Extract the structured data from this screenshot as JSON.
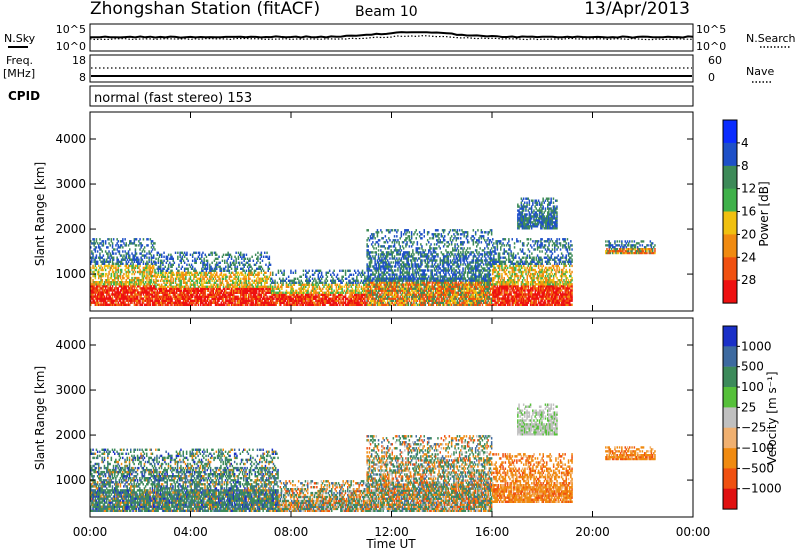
{
  "header": {
    "station": "Zhongshan Station (fitACF)",
    "beam": "Beam 10",
    "date": "13/Apr/2013"
  },
  "noise_panel": {
    "left_label": "N.Sky",
    "right_label": "N.Search",
    "left_ticks": [
      "10^5",
      "10^0"
    ],
    "right_ticks": [
      "10^5",
      "10^0"
    ]
  },
  "freq_panel": {
    "left_label": "Freq.",
    "left_unit": "[MHz]",
    "right_label": "Nave",
    "left_ticks": [
      "18",
      "8"
    ],
    "right_ticks": [
      "60",
      "0"
    ]
  },
  "cpid": {
    "label": "CPID",
    "mode": "normal (fast stereo) 153"
  },
  "x_axis": {
    "label": "Time UT",
    "ticks": [
      "00:00",
      "04:00",
      "08:00",
      "12:00",
      "16:00",
      "20:00",
      "00:00"
    ]
  },
  "chart_data": [
    {
      "type": "heatmap",
      "name": "power-panel",
      "ylabel": "Slant Range [km]",
      "yticks": [
        1000,
        2000,
        3000,
        4000
      ],
      "ylim": [
        180,
        4600
      ],
      "xlim_hours": [
        0,
        24
      ],
      "colorbar": {
        "label": "Power [dB]",
        "ticks": [
          "4",
          "8",
          "12",
          "16",
          "20",
          "24",
          "28"
        ],
        "colors": [
          "#0a2cff",
          "#1e50c8",
          "#3d8a58",
          "#3fb14a",
          "#f0c010",
          "#f08a10",
          "#f05010",
          "#ee1010"
        ]
      },
      "scatter_regions": [
        {
          "t0": 0.0,
          "t1": 2.6,
          "r0": 300,
          "r1": 1800,
          "level": "high"
        },
        {
          "t0": 2.6,
          "t1": 7.2,
          "r0": 300,
          "r1": 1500,
          "level": "high"
        },
        {
          "t0": 7.2,
          "t1": 11.0,
          "r0": 300,
          "r1": 1100,
          "level": "high"
        },
        {
          "t0": 11.0,
          "t1": 16.0,
          "r0": 300,
          "r1": 2000,
          "level": "medium"
        },
        {
          "t0": 16.0,
          "t1": 19.2,
          "r0": 300,
          "r1": 1800,
          "level": "high"
        },
        {
          "t0": 17.0,
          "t1": 18.6,
          "r0": 2000,
          "r1": 2700,
          "level": "low"
        },
        {
          "t0": 20.5,
          "t1": 22.5,
          "r0": 1450,
          "r1": 1750,
          "level": "medium"
        }
      ]
    },
    {
      "type": "heatmap",
      "name": "velocity-panel",
      "ylabel": "Slant Range [km]",
      "yticks": [
        1000,
        2000,
        3000,
        4000
      ],
      "ylim": [
        180,
        4600
      ],
      "xlim_hours": [
        0,
        24
      ],
      "colorbar": {
        "label": "Velocity [m s⁻¹]",
        "ticks": [
          "1000",
          "500",
          "100",
          "25",
          "−25",
          "−100",
          "−500",
          "−1000"
        ],
        "colors": [
          "#1a30c8",
          "#3d6aa0",
          "#3c8a5a",
          "#56c03a",
          "#c0c0c0",
          "#f0b070",
          "#f08a10",
          "#f05010",
          "#e01010"
        ]
      },
      "scatter_regions": [
        {
          "t0": 0.0,
          "t1": 7.5,
          "r0": 300,
          "r1": 1700,
          "level": "positive"
        },
        {
          "t0": 7.5,
          "t1": 11.0,
          "r0": 300,
          "r1": 1000,
          "level": "mixed"
        },
        {
          "t0": 11.0,
          "t1": 16.0,
          "r0": 300,
          "r1": 2000,
          "level": "mixed"
        },
        {
          "t0": 16.0,
          "t1": 19.2,
          "r0": 500,
          "r1": 1600,
          "level": "negative"
        },
        {
          "t0": 17.0,
          "t1": 18.6,
          "r0": 2000,
          "r1": 2700,
          "level": "zero"
        },
        {
          "t0": 20.5,
          "t1": 22.5,
          "r0": 1450,
          "r1": 1750,
          "level": "negative"
        }
      ]
    }
  ]
}
